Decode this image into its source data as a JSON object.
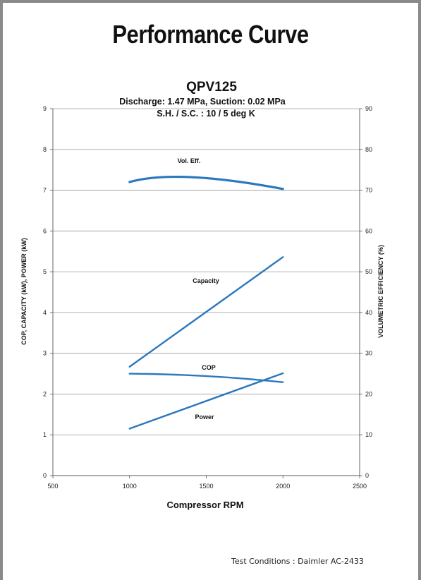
{
  "page": {
    "title": "Performance Curve",
    "footnote": "Test Conditions :  Daimler AC-2433"
  },
  "chart_data": {
    "type": "line",
    "title": "QPV125",
    "subtitle_lines": [
      "Discharge: 1.47 MPa, Suction: 0.02 MPa",
      "S.H. / S.C. : 10 / 5 deg K"
    ],
    "xlabel": "Compressor RPM",
    "ylabel": "COP, CAPACITY (kW), POWER (kW)",
    "y2label": "VOLUMETRIC EFFICIENCY (%)",
    "xlim": [
      500,
      2500
    ],
    "ylim": [
      0,
      9
    ],
    "y2lim": [
      0,
      90
    ],
    "xticks": [
      500,
      1000,
      1500,
      2000,
      2500
    ],
    "yticks": [
      0,
      1,
      2,
      3,
      4,
      5,
      6,
      7,
      8,
      9
    ],
    "y2ticks": [
      0,
      10,
      20,
      30,
      40,
      50,
      60,
      70,
      80,
      90
    ],
    "grid": "horizontal",
    "line_color": "#2b78bd",
    "series": [
      {
        "name": "Vol. Eff.",
        "axis": "right",
        "x": [
          1000,
          1400,
          2000
        ],
        "y": [
          72,
          73.2,
          70.3
        ]
      },
      {
        "name": "Capacity",
        "axis": "left",
        "x": [
          1000,
          2000
        ],
        "y": [
          2.67,
          5.36
        ]
      },
      {
        "name": "COP",
        "axis": "left",
        "x": [
          1000,
          1500,
          2000
        ],
        "y": [
          2.5,
          2.44,
          2.29
        ]
      },
      {
        "name": "Power",
        "axis": "left",
        "x": [
          1000,
          2000
        ],
        "y": [
          1.15,
          2.51
        ]
      }
    ]
  }
}
